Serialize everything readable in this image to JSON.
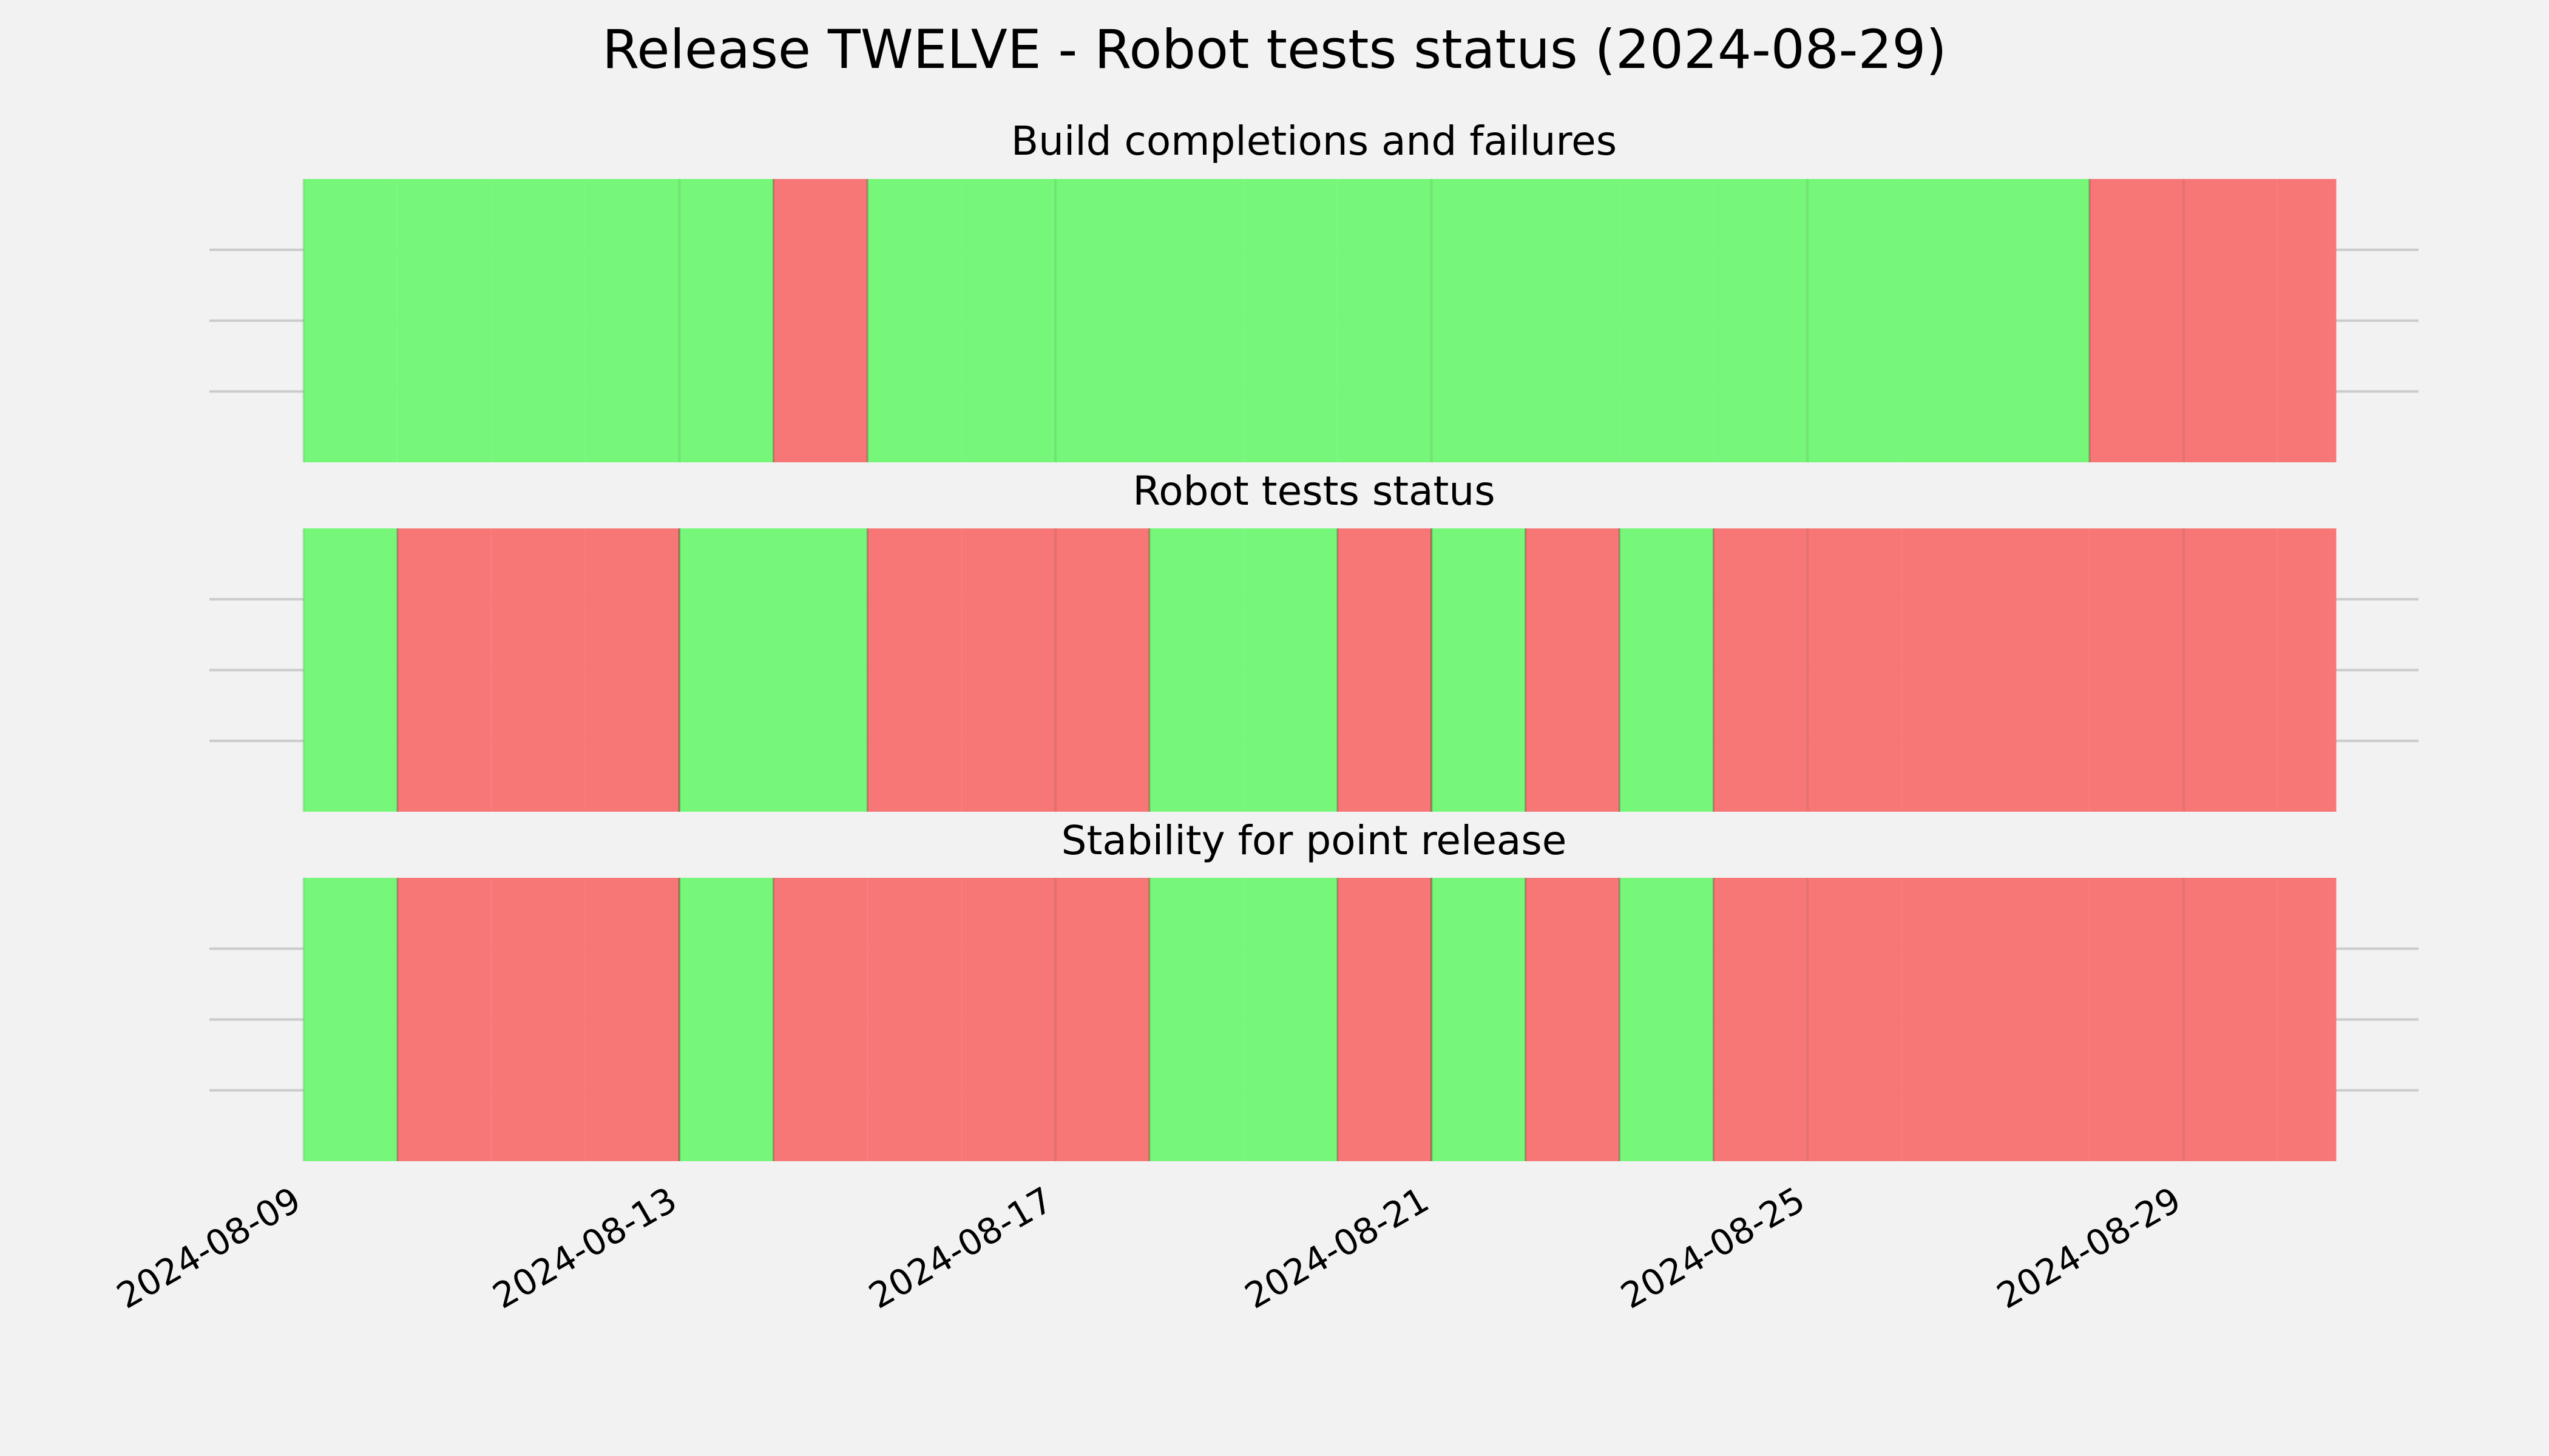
{
  "chart_data": {
    "type": "timeline",
    "title": "Release TWELVE - Robot tests status (2024-08-29)",
    "x_start": "2024-08-09",
    "x_end": "2024-08-30T15:00",
    "xlim": [
      "2024-08-08T00:00",
      "2024-08-31T12:00"
    ],
    "tick_labels": [
      "2024-08-09",
      "2024-08-13",
      "2024-08-17",
      "2024-08-21",
      "2024-08-25",
      "2024-08-29"
    ],
    "grid": true,
    "status_colors": {
      "pass": "#76f77a",
      "fail": "#f77776"
    },
    "panels": [
      {
        "title": "Build completions and failures",
        "days": [
          "pass",
          "pass",
          "pass",
          "pass",
          "pass",
          "fail",
          "pass",
          "pass",
          "pass",
          "pass",
          "pass",
          "pass",
          "pass",
          "pass",
          "pass",
          "pass",
          "pass",
          "pass",
          "pass",
          "fail",
          "fail",
          "fail"
        ]
      },
      {
        "title": "Robot tests status",
        "days": [
          "pass",
          "fail",
          "fail",
          "fail",
          "pass",
          "pass",
          "fail",
          "fail",
          "fail",
          "pass",
          "pass",
          "fail",
          "pass",
          "fail",
          "pass",
          "fail",
          "fail",
          "fail",
          "fail",
          "fail",
          "fail",
          "fail"
        ]
      },
      {
        "title": "Stability for point release",
        "days": [
          "pass",
          "fail",
          "fail",
          "fail",
          "pass",
          "fail",
          "fail",
          "fail",
          "fail",
          "pass",
          "pass",
          "fail",
          "pass",
          "fail",
          "pass",
          "fail",
          "fail",
          "fail",
          "fail",
          "fail",
          "fail",
          "fail"
        ]
      }
    ]
  }
}
